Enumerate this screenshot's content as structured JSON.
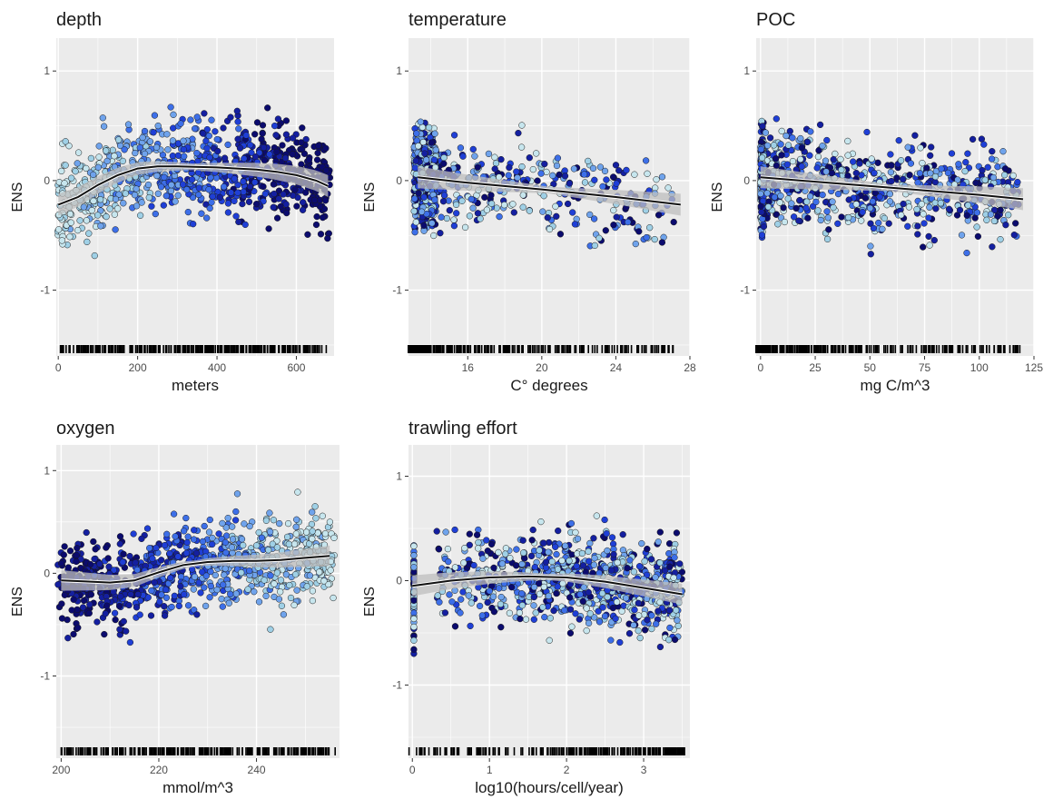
{
  "chart_data": [
    {
      "type": "scatter",
      "title": "depth",
      "xlabel": "meters",
      "ylabel": "ENS",
      "xlim": [
        -5,
        695
      ],
      "ylim": [
        -1.6,
        1.3
      ],
      "xticks": [
        0,
        200,
        400,
        600
      ],
      "yticks": [
        -1,
        0,
        1
      ],
      "smooth": {
        "x": [
          0,
          50,
          100,
          150,
          200,
          250,
          300,
          400,
          500,
          550,
          600,
          650,
          680
        ],
        "y": [
          -0.22,
          -0.15,
          -0.04,
          0.05,
          0.11,
          0.13,
          0.13,
          0.12,
          0.1,
          0.08,
          0.05,
          0.0,
          -0.05
        ]
      },
      "rug": "dense"
    },
    {
      "type": "scatter",
      "title": "temperature",
      "xlabel": "C° degrees",
      "ylabel": "ENS",
      "xlim": [
        12.8,
        28.0
      ],
      "ylim": [
        -1.6,
        1.3
      ],
      "xticks": [
        16,
        20,
        24,
        28
      ],
      "yticks": [
        -1,
        0,
        1
      ],
      "smooth": {
        "x": [
          13.3,
          16,
          20,
          24,
          27.5
        ],
        "y": [
          0.03,
          -0.02,
          -0.08,
          -0.15,
          -0.22
        ]
      },
      "rug": "sparse-right"
    },
    {
      "type": "scatter",
      "title": "POC",
      "xlabel": "mg C/m^3",
      "ylabel": "ENS",
      "xlim": [
        -2,
        125
      ],
      "ylim": [
        -1.6,
        1.3
      ],
      "xticks": [
        0,
        25,
        50,
        75,
        100,
        125
      ],
      "yticks": [
        -1,
        0,
        1
      ],
      "smooth": {
        "x": [
          0,
          25,
          50,
          75,
          100,
          120
        ],
        "y": [
          0.03,
          -0.01,
          -0.05,
          -0.09,
          -0.13,
          -0.17
        ]
      },
      "rug": "sparse-right"
    },
    {
      "type": "scatter",
      "title": "oxygen",
      "xlabel": "mmol/m^3",
      "ylabel": "ENS",
      "xlim": [
        199,
        257
      ],
      "ylim": [
        -1.8,
        1.25
      ],
      "xticks": [
        200,
        220,
        240
      ],
      "yticks": [
        -1,
        0,
        1
      ],
      "smooth": {
        "x": [
          200,
          205,
          210,
          215,
          220,
          225,
          230,
          235,
          240,
          245,
          250,
          255
        ],
        "y": [
          -0.07,
          -0.08,
          -0.09,
          -0.07,
          0.01,
          0.08,
          0.11,
          0.12,
          0.12,
          0.13,
          0.15,
          0.17
        ]
      },
      "rug": "dense"
    },
    {
      "type": "scatter",
      "title": "trawling effort",
      "xlabel": "log10(hours/cell/year)",
      "ylabel": "ENS",
      "xlim": [
        -0.05,
        3.6
      ],
      "ylim": [
        -1.7,
        1.3
      ],
      "xticks": [
        0,
        1,
        2,
        3
      ],
      "yticks": [
        -1,
        0,
        1
      ],
      "smooth": {
        "x": [
          0,
          0.5,
          1,
          1.5,
          2,
          2.5,
          3,
          3.5
        ],
        "y": [
          -0.05,
          0.0,
          0.03,
          0.04,
          0.03,
          -0.01,
          -0.07,
          -0.13
        ]
      },
      "rug": "sparse-left"
    }
  ]
}
